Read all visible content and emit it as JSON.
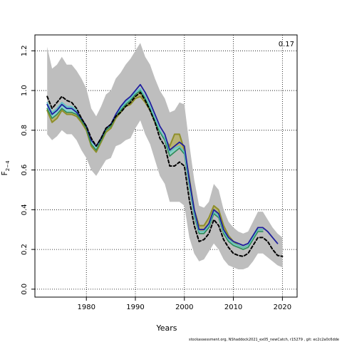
{
  "chart_data": {
    "type": "line",
    "xlabel": "Years",
    "ylabel": "F",
    "ylabel_subscript": "2−4",
    "xlim": [
      1969.5,
      2023
    ],
    "ylim": [
      -0.04,
      1.28
    ],
    "xticks": [
      1980,
      1990,
      2000,
      2010,
      2020
    ],
    "yticks": [
      0.0,
      0.2,
      0.4,
      0.6,
      0.8,
      1.0,
      1.2
    ],
    "ytick_labels": [
      "0.0",
      "0.2",
      "0.4",
      "0.6",
      "0.8",
      "1.0",
      "1.2"
    ],
    "grid": true,
    "annotation": "0.17",
    "footer": "stockassessment.org, NShaddock2021_ex05_newCatch, r15279 , git: ec2c2a0c6dde",
    "colors": {
      "band": "#bebebe",
      "dashed": "#000000",
      "blue": "#1f1f9e",
      "olive": "#8f8f2a",
      "green": "#2e8b57",
      "cyan": "#5fc4c4",
      "olive_fill": "#b8b060",
      "cyan_fill": "#7fd6d6"
    },
    "series": [
      {
        "key": "confidence_band",
        "x": [
          1972,
          1973,
          1974,
          1975,
          1976,
          1977,
          1978,
          1979,
          1980,
          1981,
          1982,
          1983,
          1984,
          1985,
          1986,
          1987,
          1988,
          1989,
          1990,
          1991,
          1992,
          1993,
          1994,
          1995,
          1996,
          1997,
          1998,
          1999,
          2000,
          2001,
          2002,
          2003,
          2004,
          2005,
          2006,
          2007,
          2008,
          2009,
          2010,
          2011,
          2012,
          2013,
          2014,
          2015,
          2016,
          2017,
          2018,
          2019,
          2020
        ],
        "upper": [
          1.22,
          1.11,
          1.13,
          1.17,
          1.13,
          1.13,
          1.1,
          1.06,
          1.01,
          0.91,
          0.87,
          0.92,
          0.98,
          1.0,
          1.06,
          1.09,
          1.13,
          1.16,
          1.2,
          1.24,
          1.17,
          1.13,
          1.06,
          1.0,
          0.96,
          0.89,
          0.9,
          0.94,
          0.93,
          0.73,
          0.55,
          0.42,
          0.41,
          0.44,
          0.53,
          0.5,
          0.4,
          0.34,
          0.31,
          0.29,
          0.28,
          0.29,
          0.34,
          0.39,
          0.39,
          0.35,
          0.31,
          0.28,
          0.26
        ],
        "lower": [
          0.78,
          0.75,
          0.77,
          0.8,
          0.78,
          0.78,
          0.75,
          0.7,
          0.66,
          0.6,
          0.57,
          0.61,
          0.65,
          0.66,
          0.72,
          0.73,
          0.75,
          0.76,
          0.81,
          0.85,
          0.78,
          0.73,
          0.65,
          0.57,
          0.53,
          0.44,
          0.44,
          0.44,
          0.42,
          0.26,
          0.18,
          0.14,
          0.15,
          0.19,
          0.23,
          0.2,
          0.15,
          0.12,
          0.11,
          0.1,
          0.1,
          0.11,
          0.14,
          0.18,
          0.18,
          0.16,
          0.14,
          0.12,
          0.11
        ]
      },
      {
        "key": "dashed",
        "x": [
          1972,
          1973,
          1974,
          1975,
          1976,
          1977,
          1978,
          1979,
          1980,
          1981,
          1982,
          1983,
          1984,
          1985,
          1986,
          1987,
          1988,
          1989,
          1990,
          1991,
          1992,
          1993,
          1994,
          1995,
          1996,
          1997,
          1998,
          1999,
          2000,
          2001,
          2002,
          2003,
          2004,
          2005,
          2006,
          2007,
          2008,
          2009,
          2010,
          2011,
          2012,
          2013,
          2014,
          2015,
          2016,
          2017,
          2018,
          2019,
          2020
        ],
        "y": [
          0.97,
          0.91,
          0.94,
          0.97,
          0.95,
          0.94,
          0.91,
          0.86,
          0.82,
          0.76,
          0.72,
          0.76,
          0.81,
          0.83,
          0.87,
          0.89,
          0.92,
          0.94,
          0.97,
          0.99,
          0.95,
          0.9,
          0.84,
          0.76,
          0.72,
          0.62,
          0.62,
          0.64,
          0.62,
          0.45,
          0.32,
          0.24,
          0.25,
          0.28,
          0.35,
          0.32,
          0.25,
          0.21,
          0.18,
          0.17,
          0.165,
          0.18,
          0.22,
          0.26,
          0.26,
          0.24,
          0.2,
          0.17,
          0.165
        ]
      },
      {
        "key": "blue",
        "x": [
          1972,
          1973,
          1974,
          1975,
          1976,
          1977,
          1978,
          1979,
          1980,
          1981,
          1982,
          1983,
          1984,
          1985,
          1986,
          1987,
          1988,
          1989,
          1990,
          1991,
          1992,
          1993,
          1994,
          1995,
          1996,
          1997,
          1998,
          1999,
          2000,
          2001,
          2002,
          2003,
          2004,
          2005,
          2006,
          2007,
          2008,
          2009,
          2010,
          2011,
          2012,
          2013,
          2014,
          2015,
          2016,
          2017,
          2018,
          2019
        ],
        "y": [
          0.93,
          0.88,
          0.9,
          0.93,
          0.91,
          0.91,
          0.89,
          0.86,
          0.82,
          0.75,
          0.72,
          0.76,
          0.81,
          0.83,
          0.88,
          0.92,
          0.95,
          0.97,
          1.0,
          1.03,
          0.99,
          0.94,
          0.88,
          0.82,
          0.78,
          0.7,
          0.72,
          0.74,
          0.72,
          0.55,
          0.4,
          0.3,
          0.3,
          0.33,
          0.4,
          0.38,
          0.3,
          0.26,
          0.24,
          0.23,
          0.22,
          0.23,
          0.27,
          0.31,
          0.31,
          0.29,
          0.26,
          0.23
        ]
      },
      {
        "key": "olive",
        "x": [
          1972,
          1973,
          1974,
          1975,
          1976,
          1977,
          1978,
          1979,
          1980,
          1981,
          1982,
          1983,
          1984,
          1985,
          1986,
          1987,
          1988,
          1989,
          1990,
          1991,
          1992,
          1993,
          1994,
          1995,
          1996,
          1997,
          1998,
          1999,
          2000,
          2001,
          2002,
          2003,
          2004,
          2005,
          2006,
          2007,
          2008,
          2009,
          2010,
          2011,
          2012,
          2013,
          2014,
          2015,
          2016
        ],
        "y": [
          0.9,
          0.84,
          0.86,
          0.9,
          0.88,
          0.88,
          0.87,
          0.84,
          0.8,
          0.72,
          0.69,
          0.74,
          0.79,
          0.81,
          0.86,
          0.89,
          0.92,
          0.93,
          0.96,
          0.97,
          0.94,
          0.9,
          0.84,
          0.79,
          0.76,
          0.72,
          0.78,
          0.78,
          0.7,
          0.56,
          0.4,
          0.32,
          0.32,
          0.36,
          0.42,
          0.4,
          0.32,
          0.27,
          0.24,
          0.22,
          0.21,
          0.22,
          0.26,
          0.3,
          0.3
        ]
      },
      {
        "key": "green",
        "x": [
          1972,
          1973,
          1974,
          1975,
          1976,
          1977,
          1978,
          1979,
          1980,
          1981,
          1982,
          1983,
          1984,
          1985,
          1986,
          1987,
          1988,
          1989,
          1990,
          1991,
          1992,
          1993,
          1994,
          1995,
          1996,
          1997,
          1998,
          1999,
          2000,
          2001,
          2002,
          2003,
          2004,
          2005,
          2006,
          2007,
          2008,
          2009,
          2010,
          2011,
          2012,
          2013,
          2014,
          2015,
          2016
        ],
        "y": [
          0.91,
          0.86,
          0.88,
          0.91,
          0.89,
          0.89,
          0.88,
          0.85,
          0.81,
          0.73,
          0.7,
          0.75,
          0.8,
          0.82,
          0.87,
          0.9,
          0.93,
          0.95,
          0.98,
          1.0,
          0.96,
          0.91,
          0.85,
          0.79,
          0.75,
          0.67,
          0.69,
          0.71,
          0.68,
          0.52,
          0.37,
          0.28,
          0.28,
          0.31,
          0.38,
          0.36,
          0.28,
          0.24,
          0.22,
          0.21,
          0.2,
          0.21,
          0.25,
          0.29,
          0.29
        ]
      },
      {
        "key": "cyan",
        "x": [
          1972,
          1973,
          1974,
          1975,
          1976,
          1977,
          1978,
          1979,
          1980,
          1981,
          1982,
          1983,
          1984,
          1985,
          1986,
          1987,
          1988,
          1989,
          1990,
          1991,
          1992,
          1993,
          1994,
          1995,
          1996,
          1997,
          1998,
          1999,
          2000,
          2001,
          2002,
          2003,
          2004,
          2005,
          2006,
          2007,
          2008,
          2009,
          2010,
          2011,
          2012,
          2013,
          2014,
          2015,
          2016
        ],
        "y": [
          0.94,
          0.89,
          0.91,
          0.94,
          0.92,
          0.92,
          0.9,
          0.86,
          0.82,
          0.75,
          0.72,
          0.76,
          0.81,
          0.83,
          0.88,
          0.91,
          0.94,
          0.96,
          0.99,
          1.01,
          0.97,
          0.92,
          0.86,
          0.8,
          0.76,
          0.69,
          0.71,
          0.72,
          0.69,
          0.53,
          0.38,
          0.29,
          0.29,
          0.32,
          0.39,
          0.37,
          0.29,
          0.25,
          0.23,
          0.22,
          0.21,
          0.22,
          0.26,
          0.3,
          0.3
        ]
      }
    ]
  }
}
